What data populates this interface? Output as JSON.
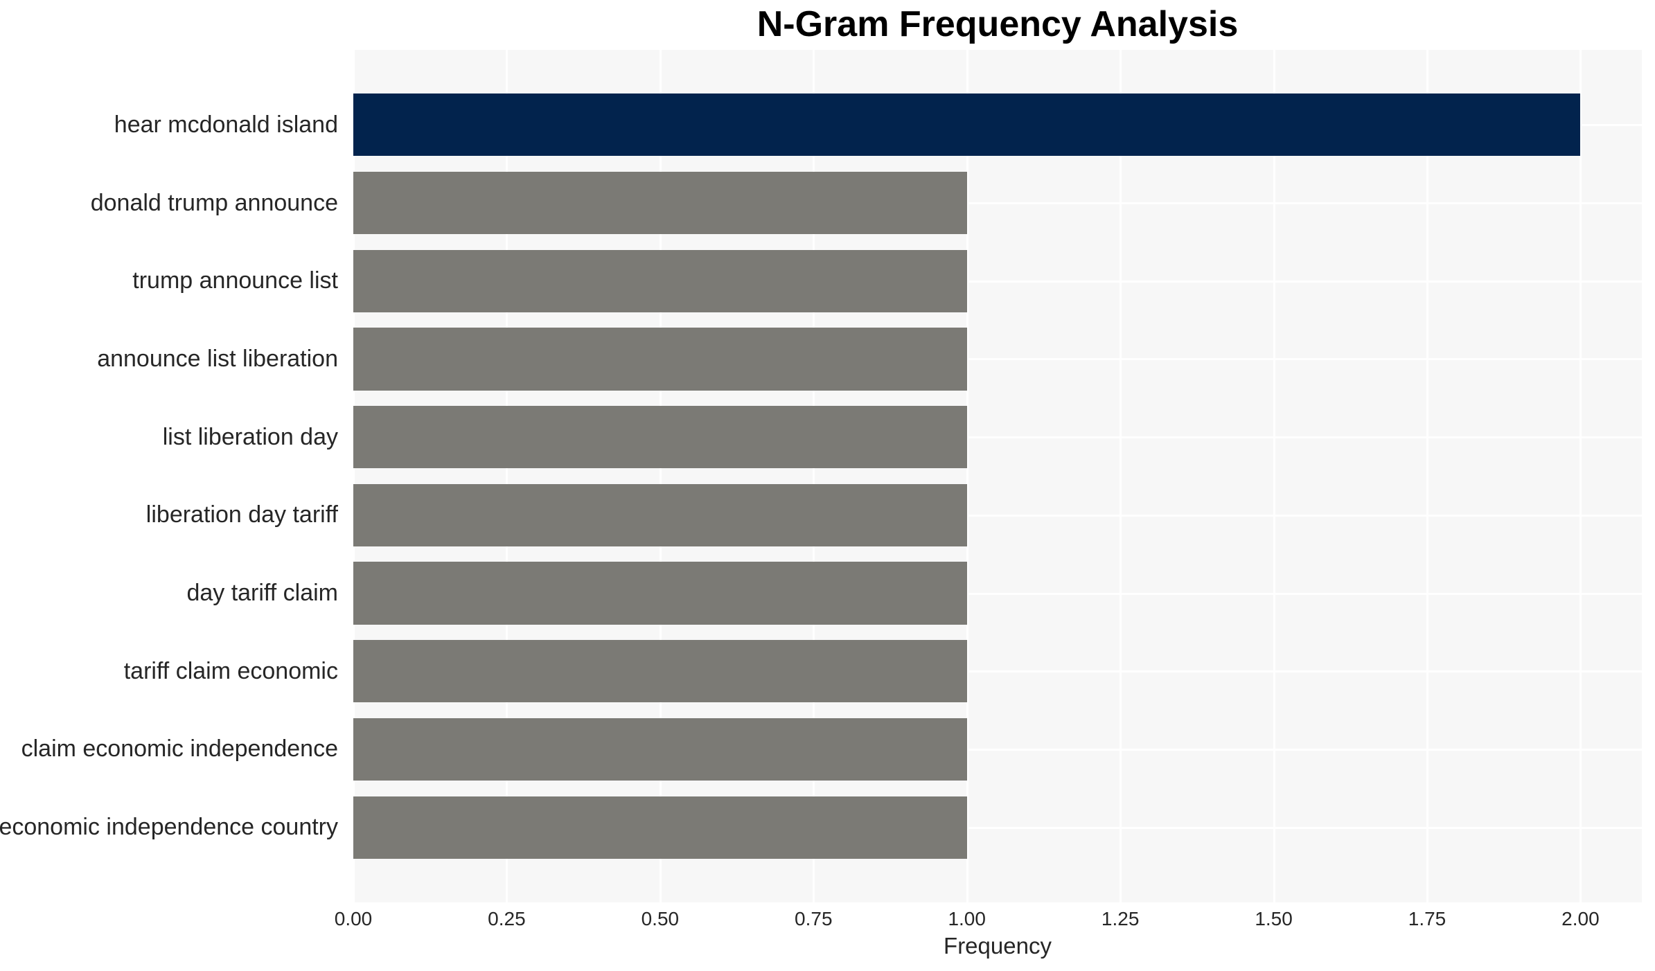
{
  "chart_data": {
    "type": "bar",
    "orientation": "horizontal",
    "title": "N-Gram Frequency Analysis",
    "xlabel": "Frequency",
    "ylabel": "",
    "categories": [
      "hear mcdonald island",
      "donald trump announce",
      "trump announce list",
      "announce list liberation",
      "list liberation day",
      "liberation day tariff",
      "day tariff claim",
      "tariff claim economic",
      "claim economic independence",
      "economic independence country"
    ],
    "values": [
      2,
      1,
      1,
      1,
      1,
      1,
      1,
      1,
      1,
      1
    ],
    "highlight_index": 0,
    "xlim": [
      0,
      2.1
    ],
    "xticks": [
      0,
      0.25,
      0.5,
      0.75,
      1,
      1.25,
      1.5,
      1.75,
      2
    ],
    "xtick_labels": [
      "0.00",
      "0.25",
      "0.50",
      "0.75",
      "1.00",
      "1.25",
      "1.50",
      "1.75",
      "2.00"
    ],
    "grid": true,
    "legend": false,
    "colors": {
      "highlight_bar": "#02234d",
      "default_bar": "#7b7a75",
      "plot_background": "#f7f7f7",
      "gridline": "#ffffff",
      "tick_text": "#262626",
      "title_text": "#000000"
    }
  }
}
